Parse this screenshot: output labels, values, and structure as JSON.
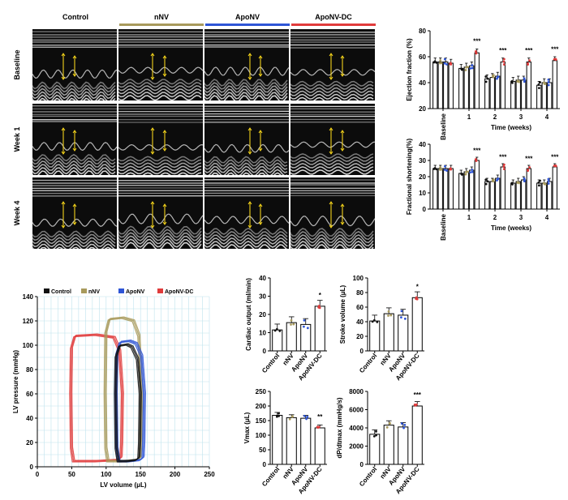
{
  "colors": {
    "Control": "#111111",
    "nNV": "#a89a5c",
    "ApoNV": "#2e55d6",
    "ApoNV-DC": "#e03b3b",
    "grid": "#bfe3ee",
    "arrow": "#f2d21b"
  },
  "echo": {
    "columns": [
      "Control",
      "nNV",
      "ApoNV",
      "ApoNV-DC"
    ],
    "rows": [
      "Baseline",
      "Week 1",
      "Week 4"
    ]
  },
  "chart_data": [
    {
      "id": "ef",
      "type": "bar",
      "ylabel": "Ejection fraction (%)",
      "xlabel": "Time (weeks)",
      "categories": [
        "Baseline",
        "1",
        "2",
        "3",
        "4"
      ],
      "ylim": [
        20,
        80
      ],
      "yticks": [
        20,
        40,
        60,
        80
      ],
      "series": [
        {
          "name": "Control",
          "values": [
            56,
            51,
            43,
            41,
            38
          ]
        },
        {
          "name": "nNV",
          "values": [
            56,
            52,
            44,
            42,
            40
          ]
        },
        {
          "name": "ApoNV",
          "values": [
            56,
            53,
            45,
            42,
            40
          ]
        },
        {
          "name": "ApoNV-DC",
          "values": [
            55,
            63,
            56,
            56,
            57
          ]
        }
      ],
      "significance": [
        "",
        "***",
        "***",
        "***",
        "***"
      ]
    },
    {
      "id": "fs",
      "type": "bar",
      "ylabel": "Fractional shortening(%)",
      "xlabel": "Time (weeks)",
      "categories": [
        "Baseline",
        "1",
        "2",
        "3",
        "4"
      ],
      "ylim": [
        0,
        40
      ],
      "yticks": [
        0,
        10,
        20,
        30,
        40
      ],
      "series": [
        {
          "name": "Control",
          "values": [
            25,
            22,
            17,
            16,
            16
          ]
        },
        {
          "name": "nNV",
          "values": [
            25,
            23,
            17,
            17,
            16
          ]
        },
        {
          "name": "ApoNV",
          "values": [
            25,
            24,
            19,
            18,
            17
          ]
        },
        {
          "name": "ApoNV-DC",
          "values": [
            25,
            30,
            26,
            25,
            26
          ]
        }
      ],
      "significance": [
        "",
        "***",
        "***",
        "***",
        "***"
      ]
    },
    {
      "id": "pv",
      "type": "line",
      "xlabel": "LV volume (μL)",
      "ylabel": "LV pressure (mmHg)",
      "xlim": [
        0,
        250
      ],
      "ylim": [
        0,
        140
      ],
      "xticks": [
        0,
        50,
        100,
        150,
        200,
        250
      ],
      "yticks": [
        0,
        20,
        40,
        60,
        80,
        100,
        120,
        140
      ],
      "legend": [
        "Control",
        "nNV",
        "ApoNV",
        "ApoNV-DC"
      ],
      "loops": [
        {
          "name": "ApoNV-DC",
          "esv": 47,
          "edv": 120,
          "peak": 108
        },
        {
          "name": "nNV",
          "esv": 97,
          "edv": 148,
          "peak": 122
        },
        {
          "name": "ApoNV",
          "esv": 113,
          "edv": 152,
          "peak": 103
        },
        {
          "name": "Control",
          "esv": 112,
          "edv": 146,
          "peak": 100
        }
      ]
    },
    {
      "id": "co",
      "type": "bar",
      "ylabel": "Cardiac output (ml/min)",
      "categories": [
        "Control",
        "nNV",
        "ApoNV",
        "ApoNV-DC"
      ],
      "values": [
        11.5,
        15.5,
        14.5,
        24.5
      ],
      "ylim": [
        0,
        40
      ],
      "yticks": [
        0,
        10,
        20,
        30,
        40
      ],
      "significance": [
        "",
        "",
        "",
        "*"
      ]
    },
    {
      "id": "sv",
      "type": "bar",
      "ylabel": "Stroke volume (μL)",
      "categories": [
        "Control",
        "nNV",
        "ApoNV",
        "ApoNV-DC"
      ],
      "values": [
        41,
        51,
        49,
        73
      ],
      "ylim": [
        0,
        100
      ],
      "yticks": [
        0,
        20,
        40,
        60,
        80,
        100
      ],
      "significance": [
        "",
        "",
        "",
        "*"
      ]
    },
    {
      "id": "vmax",
      "type": "bar",
      "ylabel": "Vmax (μL)",
      "categories": [
        "Control",
        "nNV",
        "ApoNV",
        "ApoNV-DC"
      ],
      "values": [
        168,
        160,
        158,
        125
      ],
      "ylim": [
        0,
        250
      ],
      "yticks": [
        0,
        50,
        100,
        150,
        200,
        250
      ],
      "significance": [
        "",
        "",
        "",
        "**"
      ]
    },
    {
      "id": "dpdt",
      "type": "bar",
      "ylabel": "dP/dtmax (mmHg/s)",
      "categories": [
        "Control",
        "nNV",
        "ApoNV",
        "ApoNV-DC"
      ],
      "values": [
        3300,
        4300,
        4100,
        6400
      ],
      "ylim": [
        0,
        8000
      ],
      "yticks": [
        0,
        2000,
        4000,
        6000,
        8000
      ],
      "significance": [
        "",
        "",
        "",
        "***"
      ]
    }
  ]
}
